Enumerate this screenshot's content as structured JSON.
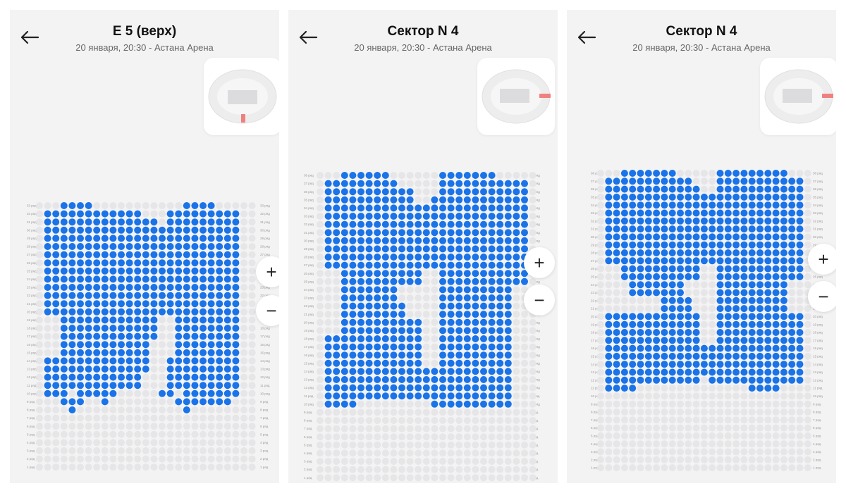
{
  "colors": {
    "available": "#1a73e8",
    "taken": "#e6e6e8",
    "highlight": "#f08080"
  },
  "icons": {
    "back": "arrow-left-icon",
    "zoom_in": "plus-icon",
    "zoom_out": "minus-icon"
  },
  "panels": [
    {
      "title": "E 5 (верх)",
      "subtitle": "20 января, 20:30 - Астана Арена",
      "zoom_in_label": "+",
      "zoom_out_label": "−",
      "row_label_template": "{n} ряд",
      "seat_map": {
        "cols": 27,
        "rows_top_number": 33,
        "rows": [
          "0001111000000000001111000",
          "0111111111111000111111111",
          "0111111111111110111111111",
          "0111111111111111111111111",
          "0111111111111111111111111",
          "0111111111111111111111111",
          "0111111111111111111111111",
          "0111111111111111111111111",
          "0111111111111111111111111",
          "0111111111111111111111111",
          "0111111111111111111111111",
          "0111111111111111111111111",
          "0111111111111111111111111",
          "0111111111111111111111111",
          "0001111111111110011111111",
          "0001111111111110011111111",
          "0001111111111110011111111",
          "0001111111111100011111111",
          "0001111111111100011111111",
          "0111111111111100111111111",
          "0111111111111100111111111",
          "0111111111111000111111111",
          "0111111111111000111111111",
          "0111011111000001101111111",
          "0001110010000000011111110",
          "0000100000000000001000000",
          "0000000000000000000000000",
          "0000000000000000000000000",
          "0000000000000000000000000",
          "0000000000000000000000000",
          "0000000000000000000000000",
          "0000000000000000000000000",
          "0000000000000000000000000"
        ]
      }
    },
    {
      "title": "Сектор N 4",
      "subtitle": "20 января, 20:30 - Астана Арена",
      "zoom_in_label": "+",
      "zoom_out_label": "−",
      "row_label_template": "{n} ряд",
      "seat_map": {
        "cols": 27,
        "rows_top_number": 38,
        "rows": [
          "000111111000000111111100000",
          "011111111100000111111111110",
          "011111111111000111111111110",
          "011111111111001111111111110",
          "011111111111111111111111110",
          "011111111111111111111111110",
          "011111111111111111111111110",
          "011111111111111111111111110",
          "011111111111111111111111110",
          "011111111111111111111111110",
          "011111111111111111111111110",
          "011111111111111111111111110",
          "000111111111100111111111110",
          "000111111111100111111111110",
          "000111111100000111111111000",
          "000111111100000111111111000",
          "000111111110000111111111000",
          "000111111110000111111111000",
          "000111111111100111111111000",
          "000111111111100111111111000",
          "011111111111100111111111000",
          "011111111111100111111111000",
          "011111111111100111111111000",
          "011111111111100111111111000",
          "011111111111111111111111000",
          "011111111111111111111111000",
          "011111111111111111111111000",
          "011111111111111111111111000",
          "011110000000001111111111000",
          "000000000000000000000000000",
          "000000000000000000000000000",
          "000000000000000000000000000",
          "000000000000000000000000000",
          "000000000000000000000000000",
          "000000000000000000000000000",
          "000000000000000000000000000",
          "000000000000000000000000000",
          "000000000000000000000000000"
        ]
      }
    },
    {
      "title": "Сектор N 4",
      "subtitle": "20 января, 20:30 - Астана Арена",
      "zoom_in_label": "+",
      "zoom_out_label": "−",
      "row_label_template": "{n} ряд",
      "seat_map": {
        "cols": 27,
        "rows_top_number": 38,
        "rows": [
          "000111111100000111111111000",
          "011111111111000111111111110",
          "011111111111100111111111110",
          "011111111111111111111111110",
          "011111111111111111111111110",
          "011111111111111111111111110",
          "011111111111111111111111110",
          "011111111111111111111111110",
          "011111111111111111111111110",
          "011111111111111111111111110",
          "011111111111111111111111110",
          "011111111111111111111111110",
          "000111111111100111111111110",
          "000111111111100111111111110",
          "000011111110000111111111000",
          "000011111110000111111111000",
          "000000001111000111111111000",
          "000000001111000111111111000",
          "011111111111100111111111110",
          "011111111111100111111111110",
          "011111111111100111111111110",
          "011111111111100111111111110",
          "011111111111111111111111110",
          "011111111111111111111111110",
          "011111111111111111111111110",
          "011111111111111111111111110",
          "011111111111101111111111110",
          "011110000000000000011110000",
          "000000000000000000000000000",
          "000000000000000000000000000",
          "000000000000000000000000000",
          "000000000000000000000000000",
          "000000000000000000000000000",
          "000000000000000000000000000",
          "000000000000000000000000000",
          "000000000000000000000000000",
          "000000000000000000000000000",
          "000000000000000000000000000"
        ]
      }
    }
  ]
}
